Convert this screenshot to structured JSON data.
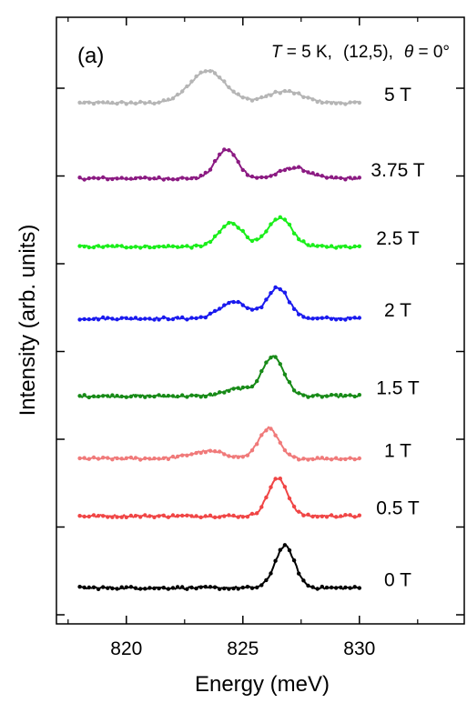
{
  "chart_data": {
    "type": "line",
    "panel_label": "(a)",
    "condition_label": {
      "T_symbol": "T",
      "T_value": " = 5 K,",
      "chirality": "(12,5),",
      "theta_symbol": "θ",
      "theta_value": " = 0°"
    },
    "xlabel": "Energy (meV)",
    "ylabel": "Intensity (arb. units)",
    "xlim": [
      817,
      834.5
    ],
    "x_ticks": [
      {
        "value": 820,
        "label": "820"
      },
      {
        "value": 825,
        "label": "825"
      },
      {
        "value": 830,
        "label": "830"
      }
    ],
    "x_minor_ticks": [
      817.5,
      822.5,
      827.5,
      832.5
    ],
    "y_ticks_count": 7,
    "data_range": [
      818,
      830
    ],
    "series": [
      {
        "name": "5 T",
        "color": "#b5b5b5",
        "baseline": 0.8,
        "peaks": [
          {
            "center": 823.5,
            "height": 0.45,
            "width": 0.9
          },
          {
            "center": 826.8,
            "height": 0.16,
            "width": 0.9
          }
        ]
      },
      {
        "name": "3.75 T",
        "color": "#8b1a82",
        "baseline": 1.85,
        "peaks": [
          {
            "center": 824.3,
            "height": 0.4,
            "width": 0.55
          },
          {
            "center": 827.2,
            "height": 0.15,
            "width": 0.7
          }
        ]
      },
      {
        "name": "2.5 T",
        "color": "#1aee1a",
        "baseline": 2.8,
        "peaks": [
          {
            "center": 824.5,
            "height": 0.33,
            "width": 0.6
          },
          {
            "center": 826.6,
            "height": 0.4,
            "width": 0.6
          }
        ]
      },
      {
        "name": "2 T",
        "color": "#1a1aee",
        "baseline": 3.8,
        "peaks": [
          {
            "center": 824.6,
            "height": 0.23,
            "width": 0.7
          },
          {
            "center": 826.5,
            "height": 0.43,
            "width": 0.55
          }
        ]
      },
      {
        "name": "1.5 T",
        "color": "#178a17",
        "baseline": 4.88,
        "peaks": [
          {
            "center": 824.8,
            "height": 0.1,
            "width": 0.7
          },
          {
            "center": 826.3,
            "height": 0.55,
            "width": 0.55
          }
        ]
      },
      {
        "name": "1 T",
        "color": "#f07a7a",
        "baseline": 5.75,
        "peaks": [
          {
            "center": 823.5,
            "height": 0.1,
            "width": 0.9
          },
          {
            "center": 826.1,
            "height": 0.42,
            "width": 0.5
          }
        ]
      },
      {
        "name": "0.5 T",
        "color": "#f04545",
        "baseline": 6.55,
        "peaks": [
          {
            "center": 826.5,
            "height": 0.52,
            "width": 0.5
          }
        ]
      },
      {
        "name": "0 T",
        "color": "#000000",
        "baseline": 7.55,
        "peaks": [
          {
            "center": 826.8,
            "height": 0.58,
            "width": 0.5
          }
        ]
      }
    ]
  }
}
